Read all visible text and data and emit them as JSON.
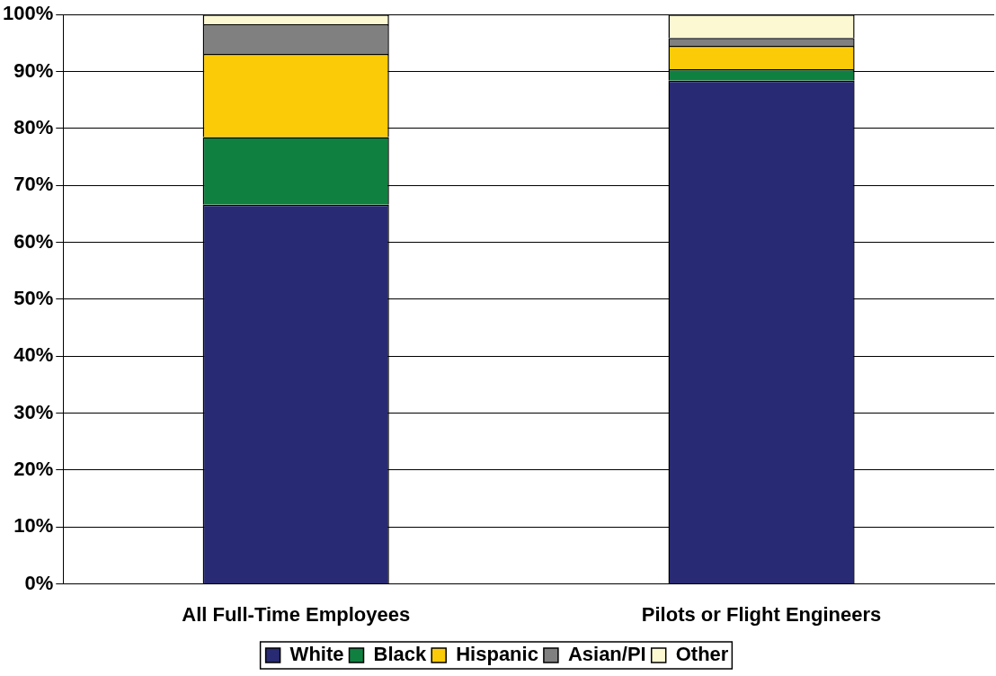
{
  "chart_data": {
    "type": "bar",
    "stacked": true,
    "categories": [
      "All Full-Time Employees",
      "Pilots or Flight Engineers"
    ],
    "series": [
      {
        "name": "White",
        "color": "#282a73",
        "values": [
          66.6,
          88.4
        ]
      },
      {
        "name": "Black",
        "color": "#108040",
        "values": [
          11.9,
          2.0
        ]
      },
      {
        "name": "Hispanic",
        "color": "#fccb08",
        "values": [
          14.6,
          4.1
        ]
      },
      {
        "name": "Asian/PI",
        "color": "#808080",
        "values": [
          5.2,
          1.4
        ]
      },
      {
        "name": "Other",
        "color": "#fbf8d2",
        "values": [
          1.7,
          4.1
        ]
      }
    ],
    "ylim": [
      0,
      100
    ],
    "yticks": [
      {
        "value": 0,
        "label": "0%"
      },
      {
        "value": 10,
        "label": "10%"
      },
      {
        "value": 20,
        "label": "20%"
      },
      {
        "value": 30,
        "label": "30%"
      },
      {
        "value": 40,
        "label": "40%"
      },
      {
        "value": 50,
        "label": "50%"
      },
      {
        "value": 60,
        "label": "60%"
      },
      {
        "value": 70,
        "label": "70%"
      },
      {
        "value": 80,
        "label": "80%"
      },
      {
        "value": 90,
        "label": "90%"
      },
      {
        "value": 100,
        "label": "100%"
      }
    ],
    "grid": "y",
    "legend": "bottom"
  }
}
